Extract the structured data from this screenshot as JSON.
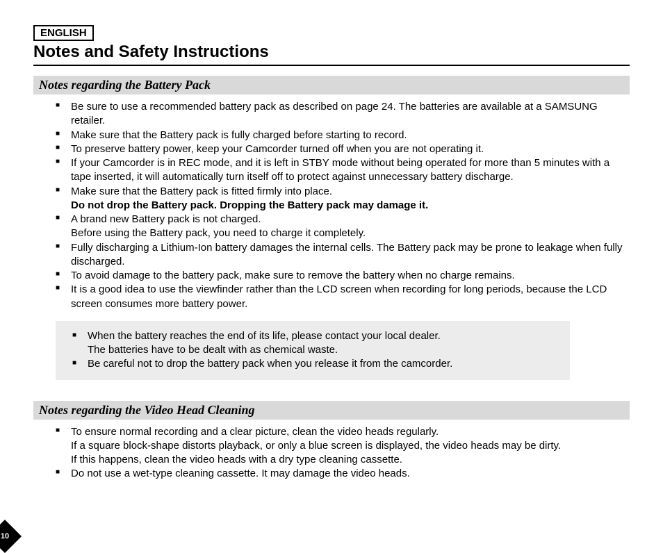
{
  "page": {
    "language_label": "ENGLISH",
    "main_title": "Notes and Safety Instructions",
    "page_number": "10",
    "colors": {
      "section_bar_bg": "#d9d9d9",
      "gray_box_bg": "#ececec",
      "text": "#000000",
      "page_bg": "#ffffff"
    }
  },
  "sections": {
    "battery": {
      "heading": "Notes regarding the Battery Pack",
      "items": [
        {
          "text": "Be sure to use a recommended battery pack as described on page 24. The batteries are available at a SAMSUNG retailer."
        },
        {
          "text": "Make sure that the Battery pack is fully charged before starting to record."
        },
        {
          "text": "To preserve battery power, keep your Camcorder turned off when you are not operating it."
        },
        {
          "text": "If your Camcorder is in REC mode, and it is left in STBY mode without being operated for more than 5 minutes with a tape inserted, it will automatically turn itself off to protect against unnecessary battery discharge."
        },
        {
          "text": "Make sure that the Battery pack is fitted firmly into place.",
          "bold_sub": "Do not drop the Battery pack. Dropping the Battery pack may damage it."
        },
        {
          "text": "A brand new Battery pack is not charged.",
          "sub": "Before using the Battery pack, you need to charge it completely."
        },
        {
          "text": "Fully discharging a Lithium-Ion battery damages the internal cells. The Battery pack may be prone to leakage when fully discharged."
        },
        {
          "text": "To avoid damage to the battery pack, make sure to remove the battery when no charge remains."
        },
        {
          "text": "It is a good idea to use the viewfinder rather than the LCD screen when recording for long periods, because the LCD screen consumes more battery power."
        }
      ],
      "boxed_items": [
        {
          "text": "When the battery reaches the end of its life, please contact your local dealer.",
          "sub": "The batteries have to be dealt with as chemical waste."
        },
        {
          "text": "Be careful not to drop the battery pack when you release it  from the camcorder."
        }
      ]
    },
    "video_head": {
      "heading": "Notes regarding the Video Head Cleaning",
      "items": [
        {
          "text": "To ensure normal recording and a clear picture, clean the video heads regularly.",
          "sub": "If a square block-shape distorts playback, or only a blue screen is displayed, the video heads may be dirty.",
          "sub2": "If this happens, clean the video heads with a dry type cleaning cassette."
        },
        {
          "text": "Do not use a wet-type cleaning cassette. It may damage the video heads."
        }
      ]
    }
  }
}
